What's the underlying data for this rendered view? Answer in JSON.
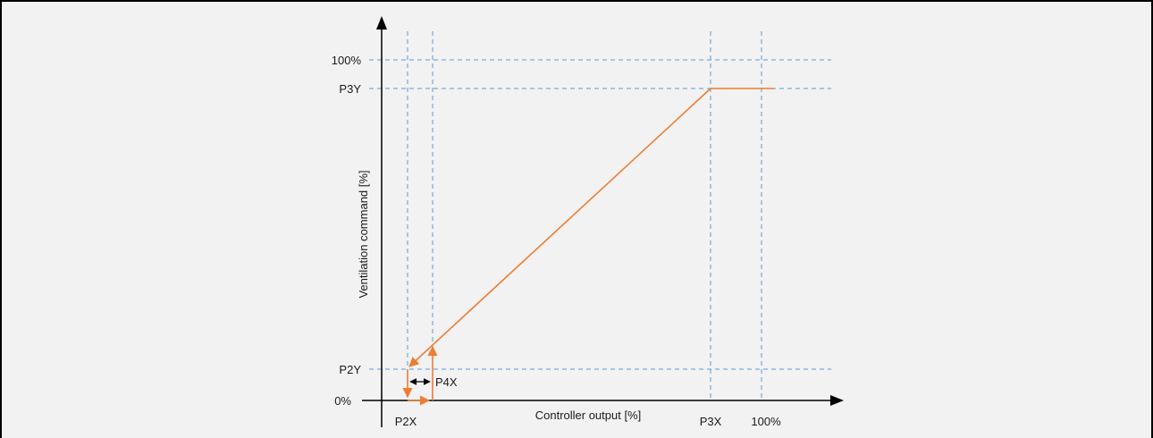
{
  "diagram": {
    "x_axis_label": "Controller output [%]",
    "y_axis_label": "Ventilation command [%]",
    "y_ticks": {
      "full": "100%",
      "p3y": "P3Y",
      "p2y": "P2Y",
      "zero": "0%"
    },
    "x_ticks": {
      "p2x": "P2X",
      "p3x": "P3X",
      "full": "100%"
    },
    "hysteresis_label": "P4X"
  },
  "colors": {
    "curve": "#ed7d31",
    "grid": "#5b9bd5",
    "axis": "#000000",
    "background": "#f2f2f2"
  }
}
